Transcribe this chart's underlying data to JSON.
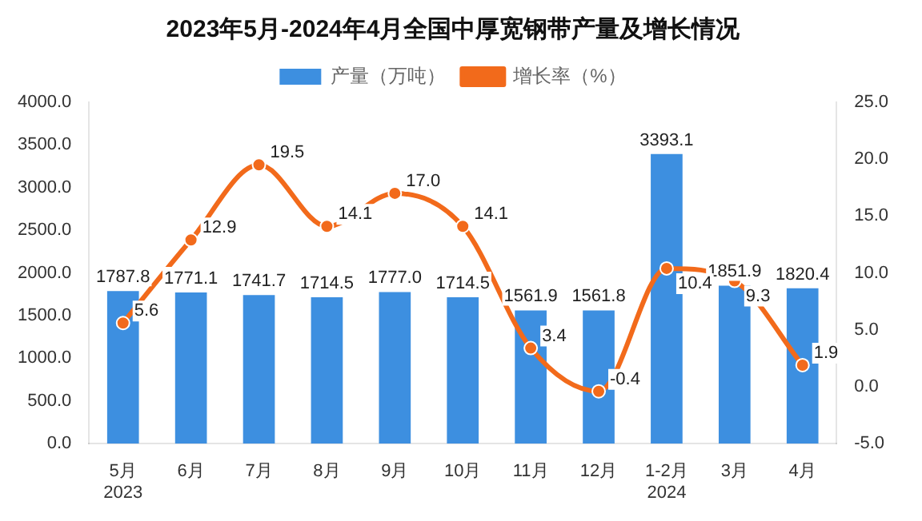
{
  "chart_data": {
    "type": "bar",
    "title": "2023年5月-2024年4月全国中厚宽钢带产量及增长情况",
    "categories": [
      "5月\n2023",
      "6月",
      "7月",
      "8月",
      "9月",
      "10月",
      "11月",
      "12月",
      "1-2月\n2024",
      "3月",
      "4月"
    ],
    "series": [
      {
        "name": "产量（万吨）",
        "type": "bar",
        "color": "#3d8fe0",
        "values": [
          1787.8,
          1771.1,
          1741.7,
          1714.5,
          1777.0,
          1714.5,
          1561.9,
          1561.8,
          3393.1,
          1851.9,
          1820.4
        ],
        "value_labels": [
          "1787.8",
          "1771.1",
          "1741.7",
          "1714.5",
          "1777.0",
          "1714.5",
          "1561.9",
          "1561.8",
          "3393.1",
          "1851.9",
          "1820.4"
        ]
      },
      {
        "name": "增长率（%）",
        "type": "line",
        "axis": "y2",
        "color": "#f26a1b",
        "values": [
          5.6,
          12.9,
          19.5,
          14.1,
          17.0,
          14.1,
          3.4,
          -0.4,
          10.4,
          9.3,
          1.9
        ],
        "value_labels": [
          "5.6",
          "12.9",
          "19.5",
          "14.1",
          "17.0",
          "14.1",
          "3.4",
          "-0.4",
          "10.4",
          "9.3",
          "1.9"
        ]
      }
    ],
    "ylim": [
      0,
      4000
    ],
    "yticks": [
      {
        "value": 0,
        "label": "0.0"
      },
      {
        "value": 500,
        "label": "500.0"
      },
      {
        "value": 1000,
        "label": "1000.0"
      },
      {
        "value": 1500,
        "label": "1500.0"
      },
      {
        "value": 2000,
        "label": "2000.0"
      },
      {
        "value": 2500,
        "label": "2500.0"
      },
      {
        "value": 3000,
        "label": "3000.0"
      },
      {
        "value": 3500,
        "label": "3500.0"
      },
      {
        "value": 4000,
        "label": "4000.0"
      }
    ],
    "y2lim": [
      -5,
      25
    ],
    "y2ticks": [
      {
        "value": -5,
        "label": "-5.0"
      },
      {
        "value": 0,
        "label": "0.0"
      },
      {
        "value": 5,
        "label": "5.0"
      },
      {
        "value": 10,
        "label": "10.0"
      },
      {
        "value": 15,
        "label": "15.0"
      },
      {
        "value": 20,
        "label": "20.0"
      },
      {
        "value": 25,
        "label": "25.0"
      }
    ],
    "legend": "top",
    "grid": false,
    "marker": "circle"
  }
}
